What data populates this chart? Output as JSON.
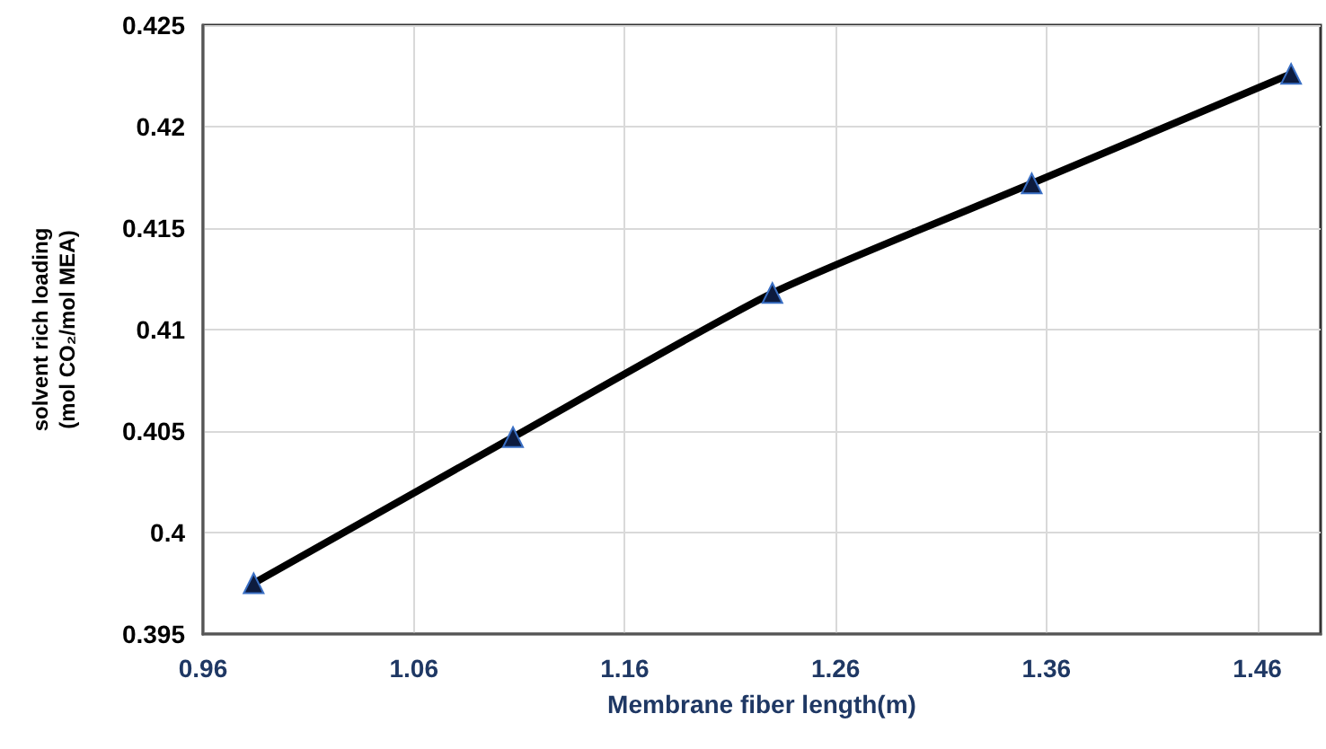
{
  "chart_data": {
    "type": "line",
    "xlabel": "Membrane fiber length(m)",
    "ylabel": "solvent rich loading\n(mol CO₂/mol MEA)",
    "x": [
      0.984,
      1.107,
      1.23,
      1.353,
      1.476
    ],
    "series": [
      {
        "color": "#000000",
        "values": [
          0.3975,
          0.4047,
          0.4118,
          0.4172,
          0.4226
        ]
      }
    ],
    "xlim": [
      0.96,
      1.49
    ],
    "xticks": [
      0.96,
      1.06,
      1.16,
      1.26,
      1.36,
      1.46
    ],
    "ylim": [
      0.395,
      0.425
    ],
    "yticks": [
      0.395,
      0.4,
      0.405,
      0.41,
      0.415,
      0.42,
      0.425
    ],
    "grid": true,
    "marker": "triangle",
    "line_style": "solid"
  }
}
